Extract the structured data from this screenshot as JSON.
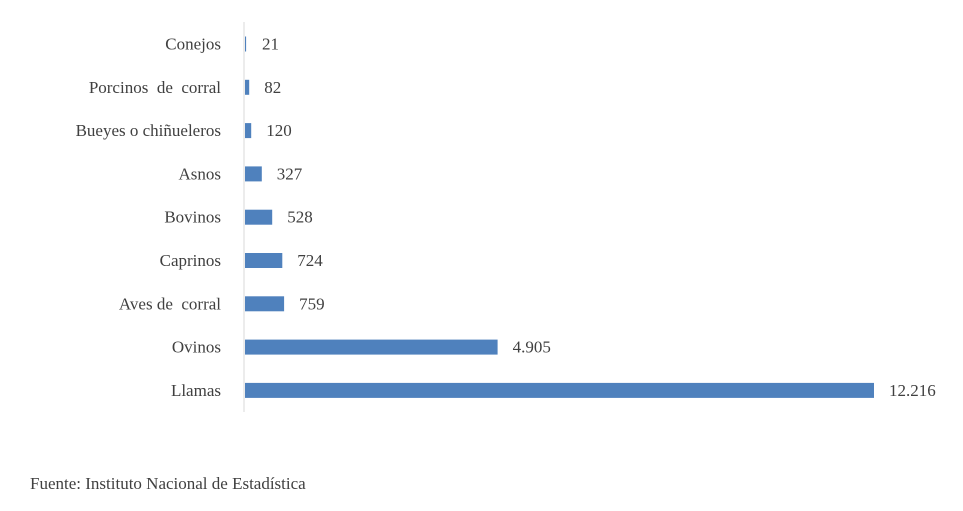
{
  "chart_data": {
    "type": "bar",
    "orientation": "horizontal",
    "categories": [
      "Conejos",
      "Porcinos  de  corral",
      "Bueyes o chiñueleros",
      "Asnos",
      "Bovinos",
      "Caprinos",
      "Aves de  corral",
      "Ovinos",
      "Llamas"
    ],
    "values": [
      21,
      82,
      120,
      327,
      528,
      724,
      759,
      4905,
      12216
    ],
    "value_labels": [
      "21",
      "82",
      "120",
      "327",
      "528",
      "724",
      "759",
      "4.905",
      "12.216"
    ],
    "title": "",
    "xlabel": "",
    "ylabel": "",
    "xlim": [
      0,
      12216
    ],
    "grid": false,
    "legend": "none",
    "bar_color": "#4f81bd"
  },
  "source": "Fuente: Instituto Nacional de Estadística"
}
